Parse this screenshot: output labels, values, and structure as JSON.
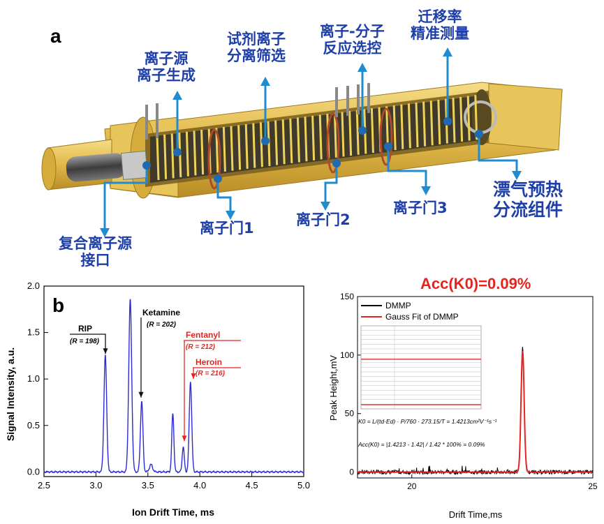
{
  "panel_a": {
    "letter": "a",
    "labels": {
      "ion_source_1": "离子源",
      "ion_source_2": "离子生成",
      "reagent_1": "试剂离子",
      "reagent_2": "分离筛选",
      "reaction_1": "离子-分子",
      "reaction_2": "反应选控",
      "mobility_1": "迁移率",
      "mobility_2": "精准测量",
      "gate1": "离子门1",
      "gate2": "离子门2",
      "gate3": "离子门3",
      "drift_1": "漂气预热",
      "drift_2": "分流组件",
      "interface_1": "复合离子源",
      "interface_2": "接口"
    }
  },
  "panel_b": {
    "letter": "b",
    "annotations": {
      "rip": "RIP",
      "rip_r": "(R = 198)",
      "ketamine": "Ketamine",
      "ketamine_r": "(R = 202)",
      "fentanyl": "Fentanyl",
      "fentanyl_r": "(R = 212)",
      "heroin": "Heroin",
      "heroin_r": "(R = 216)"
    },
    "colors": {
      "line": "#2b2bd6",
      "red": "#e8231e",
      "black": "#111111"
    }
  },
  "panel_c": {
    "title": "Acc(K0)=0.09%",
    "legend": {
      "dmmp": "DMMP",
      "fit": "Gauss Fit of DMMP"
    },
    "formula_k0": "K0 = L/(td·Ed) · P/760 · 273.15/T = 1.4213cm²V⁻¹s⁻¹",
    "formula_acc": "Acc(K0) = |1.4213 - 1.42| / 1.42 * 100% = 0.09%",
    "colors": {
      "black": "#000000",
      "red": "#e8231e"
    }
  },
  "chart_data": [
    {
      "type": "line",
      "xlabel": "Ion Drift Time, ms",
      "ylabel": "Signal Intensity, a.u.",
      "xlim": [
        2.5,
        5.0
      ],
      "ylim": [
        -0.05,
        2.0
      ],
      "xticks": [
        "2.5",
        "3.0",
        "3.5",
        "4.0",
        "4.5",
        "5.0"
      ],
      "yticks": [
        "0.0",
        "0.5",
        "1.0",
        "1.5",
        "2.0"
      ],
      "peaks": [
        {
          "x": 3.09,
          "y": 1.25,
          "w": 0.013
        },
        {
          "x": 3.33,
          "y": 1.85,
          "w": 0.014
        },
        {
          "x": 3.44,
          "y": 0.76,
          "w": 0.012
        },
        {
          "x": 3.53,
          "y": 0.08,
          "w": 0.015
        },
        {
          "x": 3.74,
          "y": 0.63,
          "w": 0.01
        },
        {
          "x": 3.84,
          "y": 0.27,
          "w": 0.01
        },
        {
          "x": 3.91,
          "y": 0.97,
          "w": 0.012
        }
      ]
    },
    {
      "type": "line",
      "xlabel": "Drift Time,ms",
      "ylabel": "Peak Height,mV",
      "xlim": [
        18.5,
        25.0
      ],
      "ylim": [
        -5,
        150
      ],
      "xticks": [
        "20",
        "25"
      ],
      "yticks": [
        "0",
        "50",
        "100",
        "150"
      ],
      "series": [
        {
          "name": "DMMP",
          "peak_x": 23.06,
          "peak_y": 107
        },
        {
          "name": "Gauss Fit of DMMP",
          "center": 23.06,
          "height": 103.3,
          "sigma": 0.043
        }
      ]
    }
  ]
}
